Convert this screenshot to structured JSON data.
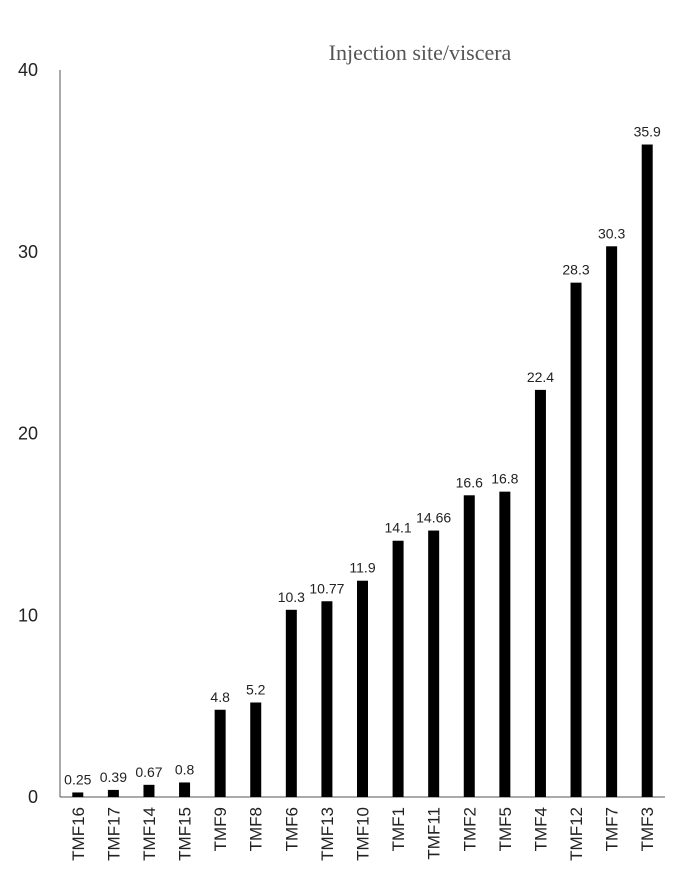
{
  "chart_data": {
    "type": "bar",
    "title": "Injection site/viscera",
    "xlabel": "",
    "ylabel": "",
    "categories": [
      "TMF16",
      "TMF17",
      "TMF14",
      "TMF15",
      "TMF9",
      "TMF8",
      "TMF6",
      "TMF13",
      "TMF10",
      "TMF1",
      "TMF11",
      "TMF2",
      "TMF5",
      "TMF4",
      "TMF12",
      "TMF7",
      "TMF3"
    ],
    "values": [
      0.25,
      0.39,
      0.67,
      0.8,
      4.8,
      5.2,
      10.3,
      10.77,
      11.9,
      14.1,
      14.66,
      16.6,
      16.8,
      22.4,
      28.3,
      30.3,
      35.9
    ],
    "data_labels": [
      "0.25",
      "0.39",
      "0.67",
      "0.8",
      "4.8",
      "5.2",
      "10.3",
      "10.77",
      "11.9",
      "14.1",
      "14.66",
      "16.6",
      "16.8",
      "22.4",
      "28.3",
      "30.3",
      "35.9"
    ],
    "ylim": [
      0,
      40
    ],
    "yticks": [
      0,
      10,
      20,
      30,
      40
    ],
    "ytick_labels": [
      "0",
      "10",
      "20",
      "30",
      "40"
    ],
    "grid": false,
    "legend": "none",
    "bar_color": "#000000",
    "axis_color": "#555555"
  }
}
